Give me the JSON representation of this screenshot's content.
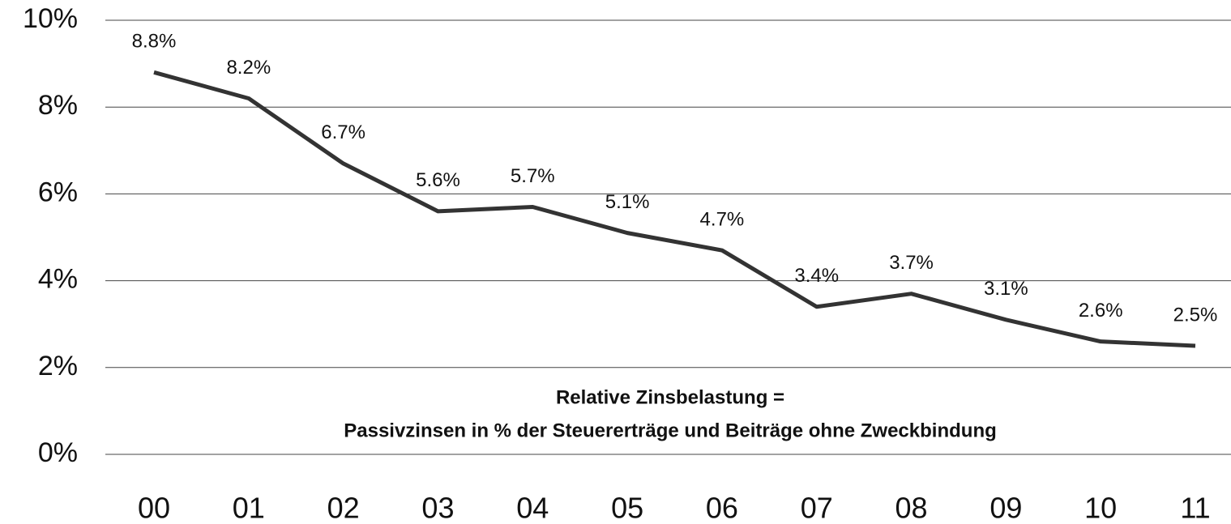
{
  "chart_data": {
    "type": "line",
    "categories": [
      "00",
      "01",
      "02",
      "03",
      "04",
      "05",
      "06",
      "07",
      "08",
      "09",
      "10",
      "11"
    ],
    "values": [
      8.8,
      8.2,
      6.7,
      5.6,
      5.7,
      5.1,
      4.7,
      3.4,
      3.7,
      3.1,
      2.6,
      2.5
    ],
    "value_labels": [
      "8.8%",
      "8.2%",
      "6.7%",
      "5.6%",
      "5.7%",
      "5.1%",
      "4.7%",
      "3.4%",
      "3.7%",
      "3.1%",
      "2.6%",
      "2.5%"
    ],
    "color": "#333333",
    "ylim": [
      0,
      10
    ],
    "yticks": [
      {
        "value": 0,
        "label": "0%"
      },
      {
        "value": 2,
        "label": "2%"
      },
      {
        "value": 4,
        "label": "4%"
      },
      {
        "value": 6,
        "label": "6%"
      },
      {
        "value": 8,
        "label": "8%"
      },
      {
        "value": 10,
        "label": "10%"
      }
    ],
    "grid": true,
    "annotation": [
      "Relative Zinsbelastung =",
      "Passivzinsen in % der Steuererträge und Beiträge ohne Zweckbindung"
    ]
  }
}
